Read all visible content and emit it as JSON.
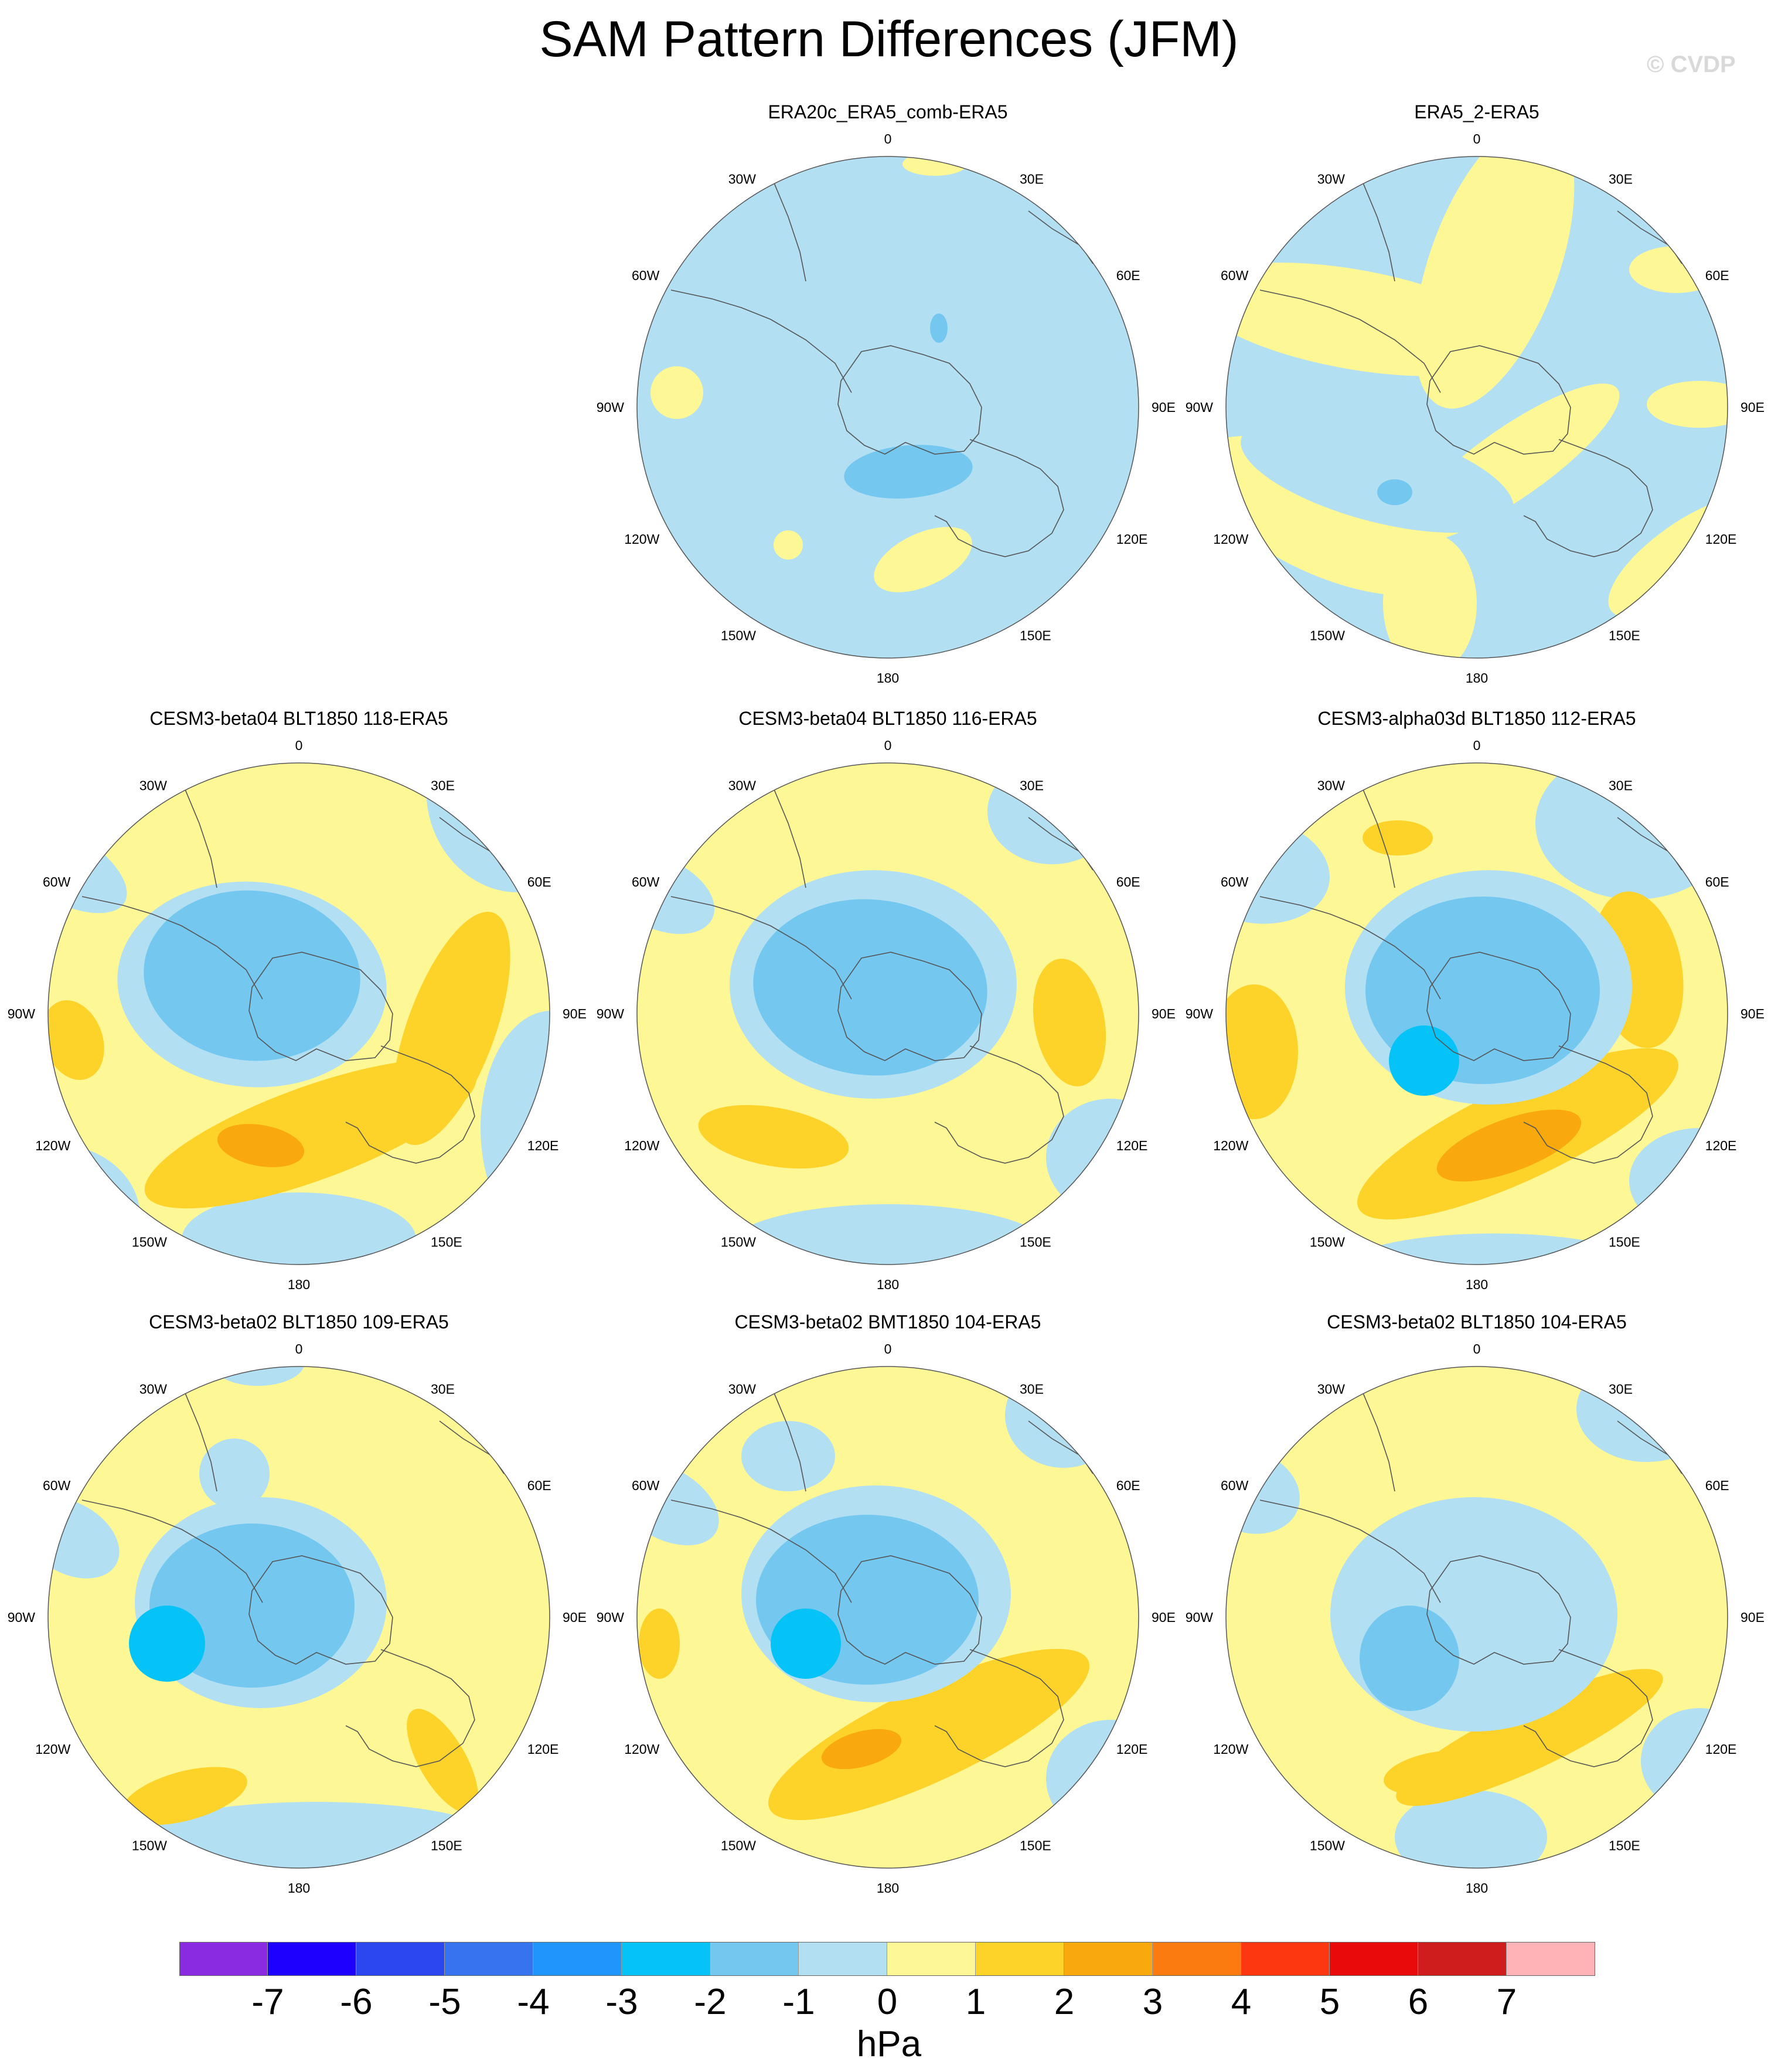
{
  "title": "SAM Pattern Differences (JFM)",
  "credit": "© CVDP",
  "colors": {
    "light_blue": "#b3dff2",
    "mid_blue": "#74c8f0",
    "cyan": "#06c3f7",
    "light_yellow": "#fdf795",
    "gold": "#fdd32a",
    "orange": "#f9a80d",
    "coast": "#555555"
  },
  "lon_labels": [
    "0",
    "30E",
    "60E",
    "90E",
    "120E",
    "150E",
    "180",
    "150W",
    "120W",
    "90W",
    "60W",
    "30W"
  ],
  "panels": [
    {
      "title": "ERA20c_ERA5_comb-ERA5",
      "background": "light_blue"
    },
    {
      "title": "ERA5_2-ERA5",
      "background": "light_blue"
    },
    {
      "title": "CESM3-beta04 BLT1850 118-ERA5",
      "background": "light_yellow"
    },
    {
      "title": "CESM3-beta04 BLT1850 116-ERA5",
      "background": "light_yellow"
    },
    {
      "title": "CESM3-alpha03d BLT1850 112-ERA5",
      "background": "light_yellow"
    },
    {
      "title": "CESM3-beta02 BLT1850 109-ERA5",
      "background": "light_yellow"
    },
    {
      "title": "CESM3-beta02 BMT1850 104-ERA5",
      "background": "light_yellow"
    },
    {
      "title": "CESM3-beta02 BLT1850 104-ERA5",
      "background": "light_yellow"
    }
  ],
  "colorbar": {
    "colors": [
      "#8a2be2",
      "#1d00fd",
      "#2c47f0",
      "#3574ee",
      "#1e96fc",
      "#06c3f7",
      "#74c8f0",
      "#b3dff2",
      "#fdf795",
      "#fdd32a",
      "#f9a80d",
      "#fb7b11",
      "#fd3810",
      "#e90b0b",
      "#cf1d1d",
      "#ffb3b6"
    ],
    "labels": [
      "-7",
      "-6",
      "-5",
      "-4",
      "-3",
      "-2",
      "-1",
      "0",
      "1",
      "2",
      "3",
      "4",
      "5",
      "6",
      "7"
    ],
    "units": "hPa"
  }
}
